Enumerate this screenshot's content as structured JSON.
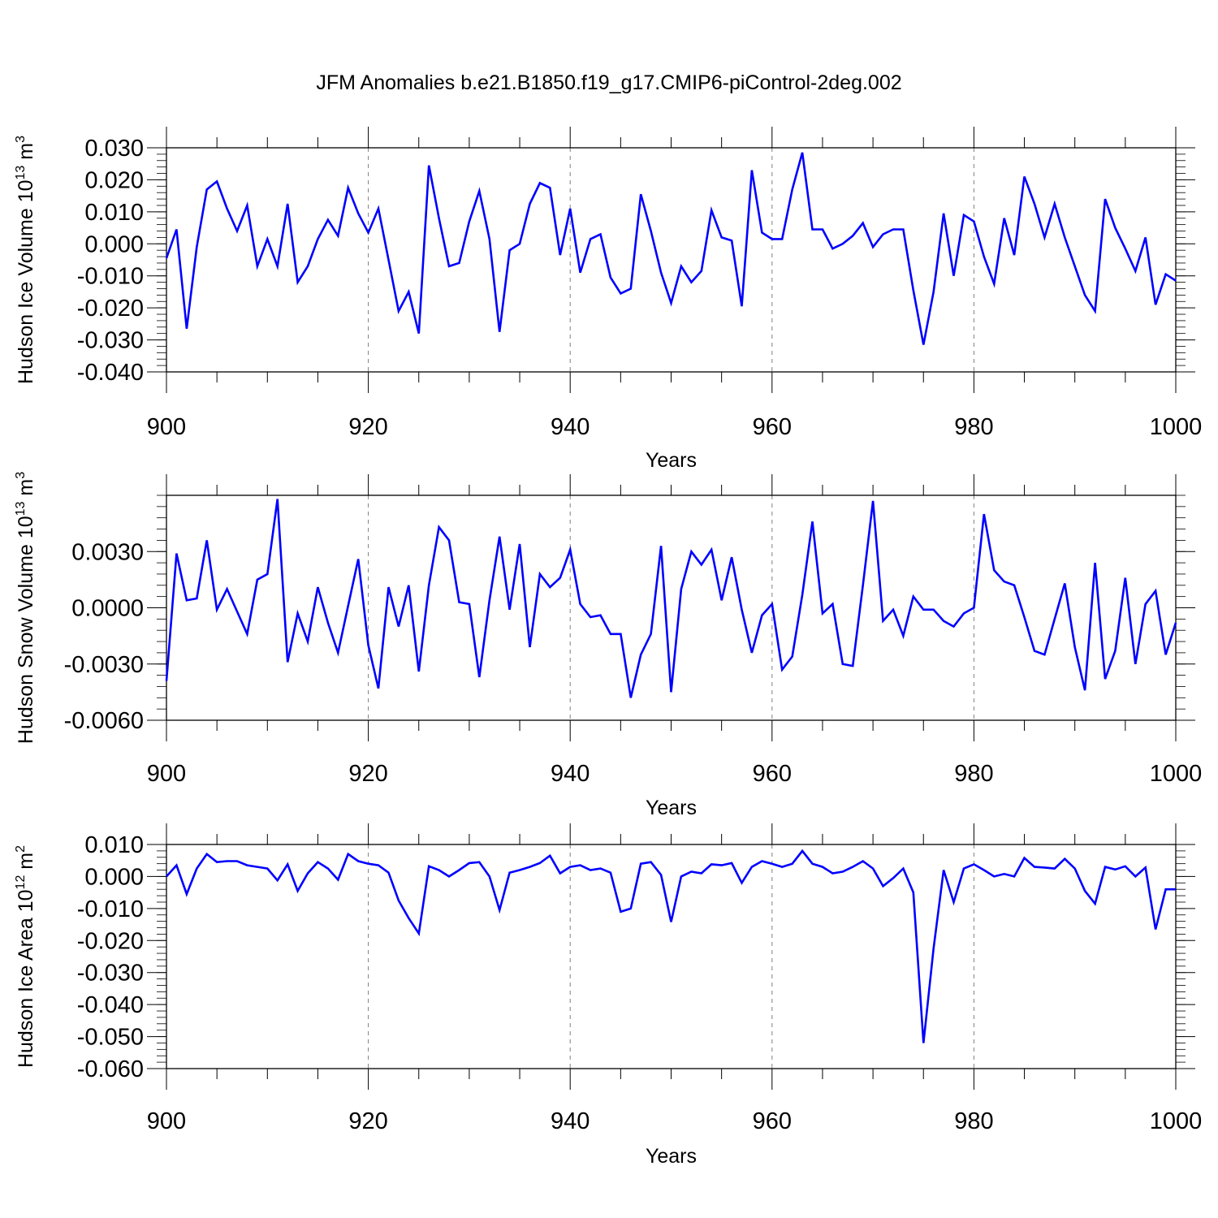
{
  "chart_data": [
    {
      "type": "line",
      "title": "JFM Anomalies b.e21.B1850.f19_g17.CMIP6-piControl-2deg.002",
      "xlabel": "Years",
      "ylabel": "Hudson Ice Volume 10",
      "ylabel_exp": "13",
      "ylabel_unit": " m",
      "ylabel_unit_exp": "3",
      "xlim": [
        900,
        1000
      ],
      "ylim": [
        -0.04,
        0.03
      ],
      "x_ticks": [
        900,
        920,
        940,
        960,
        980,
        1000
      ],
      "y_ticks": [
        "0.030",
        "0.020",
        "0.010",
        "0.000",
        "-0.010",
        "-0.020",
        "-0.030",
        "-0.040"
      ],
      "grid": "vertical-dashed",
      "line_color": "#0000ff",
      "x": [
        900,
        901,
        902,
        903,
        904,
        905,
        906,
        907,
        908,
        909,
        910,
        911,
        912,
        913,
        914,
        915,
        916,
        917,
        918,
        919,
        920,
        921,
        922,
        923,
        924,
        925,
        926,
        927,
        928,
        929,
        930,
        931,
        932,
        933,
        934,
        935,
        936,
        937,
        938,
        939,
        940,
        941,
        942,
        943,
        944,
        945,
        946,
        947,
        948,
        949,
        950,
        951,
        952,
        953,
        954,
        955,
        956,
        957,
        958,
        959,
        960,
        961,
        962,
        963,
        964,
        965,
        966,
        967,
        968,
        969,
        970,
        971,
        972,
        973,
        974,
        975,
        976,
        977,
        978,
        979,
        980,
        981,
        982,
        983,
        984,
        985,
        986,
        987,
        988,
        989,
        990,
        991,
        992,
        993,
        994,
        995,
        996,
        997,
        998,
        999,
        1000
      ],
      "values": [
        -0.0045,
        0.0045,
        -0.0265,
        -0.001,
        0.017,
        0.0195,
        0.011,
        0.004,
        0.012,
        -0.007,
        0.0015,
        -0.007,
        0.0125,
        -0.012,
        -0.007,
        0.0015,
        0.0075,
        0.0025,
        0.0175,
        0.0095,
        0.0035,
        0.011,
        -0.005,
        -0.021,
        -0.015,
        -0.028,
        0.0245,
        0.008,
        -0.007,
        -0.006,
        0.007,
        0.0165,
        0.0015,
        -0.0275,
        -0.002,
        0.0,
        0.0125,
        0.019,
        0.0175,
        -0.0035,
        0.011,
        -0.009,
        0.0015,
        0.003,
        -0.0105,
        -0.0155,
        -0.014,
        0.0155,
        0.004,
        -0.009,
        -0.0185,
        -0.007,
        -0.012,
        -0.0085,
        0.0105,
        0.002,
        0.001,
        -0.0195,
        0.023,
        0.0035,
        0.0015,
        0.0015,
        0.017,
        0.0285,
        0.0045,
        0.0045,
        -0.0015,
        0.0,
        0.0025,
        0.0065,
        -0.001,
        0.003,
        0.0045,
        0.0045,
        -0.0145,
        -0.0315,
        -0.015,
        0.0095,
        -0.01,
        0.009,
        0.007,
        -0.004,
        -0.0125,
        0.008,
        -0.0035,
        0.021,
        0.0125,
        0.002,
        0.0125,
        0.002,
        -0.007,
        -0.016,
        -0.021,
        0.014,
        0.005,
        -0.0015,
        -0.0085,
        0.002,
        -0.019,
        -0.0095,
        -0.0115
      ]
    },
    {
      "type": "line",
      "xlabel": "Years",
      "ylabel": "Hudson Snow Volume 10",
      "ylabel_exp": "13",
      "ylabel_unit": " m",
      "ylabel_unit_exp": "3",
      "xlim": [
        900,
        1000
      ],
      "ylim": [
        -0.006,
        0.006
      ],
      "x_ticks": [
        900,
        920,
        940,
        960,
        980,
        1000
      ],
      "y_ticks": [
        "0.0030",
        "0.0000",
        "-0.0030",
        "-0.0060"
      ],
      "y_tick_values": [
        0.003,
        0.0,
        -0.003,
        -0.006
      ],
      "grid": "vertical-dashed",
      "line_color": "#0000ff",
      "x": [
        900,
        901,
        902,
        903,
        904,
        905,
        906,
        907,
        908,
        909,
        910,
        911,
        912,
        913,
        914,
        915,
        916,
        917,
        918,
        919,
        920,
        921,
        922,
        923,
        924,
        925,
        926,
        927,
        928,
        929,
        930,
        931,
        932,
        933,
        934,
        935,
        936,
        937,
        938,
        939,
        940,
        941,
        942,
        943,
        944,
        945,
        946,
        947,
        948,
        949,
        950,
        951,
        952,
        953,
        954,
        955,
        956,
        957,
        958,
        959,
        960,
        961,
        962,
        963,
        964,
        965,
        966,
        967,
        968,
        969,
        970,
        971,
        972,
        973,
        974,
        975,
        976,
        977,
        978,
        979,
        980,
        981,
        982,
        983,
        984,
        985,
        986,
        987,
        988,
        989,
        990,
        991,
        992,
        993,
        994,
        995,
        996,
        997,
        998,
        999,
        1000
      ],
      "values": [
        -0.0039,
        0.0029,
        0.0004,
        0.0005,
        0.0036,
        -0.0001,
        0.001,
        -0.0002,
        -0.0014,
        0.0015,
        0.0018,
        0.0058,
        -0.0029,
        -0.0003,
        -0.0018,
        0.0011,
        -0.0008,
        -0.0024,
        0.0001,
        0.0026,
        -0.002,
        -0.0043,
        0.0011,
        -0.001,
        0.0012,
        -0.0034,
        0.0012,
        0.0043,
        0.0036,
        0.0003,
        0.0002,
        -0.0037,
        0.0004,
        0.0038,
        -0.0001,
        0.0034,
        -0.0021,
        0.0018,
        0.0011,
        0.0016,
        0.0031,
        0.0002,
        -0.0005,
        -0.0004,
        -0.0014,
        -0.0014,
        -0.0048,
        -0.0025,
        -0.0014,
        0.0033,
        -0.0045,
        0.001,
        0.003,
        0.0023,
        0.0031,
        0.0004,
        0.0027,
        -0.0001,
        -0.0024,
        -0.0004,
        0.0002,
        -0.0033,
        -0.0026,
        0.0007,
        0.0046,
        -0.0003,
        0.0002,
        -0.003,
        -0.0031,
        0.0012,
        0.0057,
        -0.0007,
        -0.0001,
        -0.0015,
        0.0006,
        -0.0001,
        -0.0001,
        -0.0007,
        -0.001,
        -0.0003,
        0.0,
        0.005,
        0.002,
        0.0014,
        0.0012,
        -0.0005,
        -0.0023,
        -0.0025,
        -0.0006,
        0.0013,
        -0.0021,
        -0.0044,
        0.0024,
        -0.0038,
        -0.0023,
        0.0016,
        -0.003,
        0.0002,
        0.0009,
        -0.0025,
        -0.0008
      ]
    },
    {
      "type": "line",
      "xlabel": "Years",
      "ylabel": "Hudson Ice Area 10",
      "ylabel_exp": "12",
      "ylabel_unit": " m",
      "ylabel_unit_exp": "2",
      "xlim": [
        900,
        1000
      ],
      "ylim": [
        -0.06,
        0.01
      ],
      "x_ticks": [
        900,
        920,
        940,
        960,
        980,
        1000
      ],
      "y_ticks": [
        "0.010",
        "0.000",
        "-0.010",
        "-0.020",
        "-0.030",
        "-0.040",
        "-0.050",
        "-0.060"
      ],
      "grid": "vertical-dashed",
      "line_color": "#0000ff",
      "x": [
        900,
        901,
        902,
        903,
        904,
        905,
        906,
        907,
        908,
        909,
        910,
        911,
        912,
        913,
        914,
        915,
        916,
        917,
        918,
        919,
        920,
        921,
        922,
        923,
        924,
        925,
        926,
        927,
        928,
        929,
        930,
        931,
        932,
        933,
        934,
        935,
        936,
        937,
        938,
        939,
        940,
        941,
        942,
        943,
        944,
        945,
        946,
        947,
        948,
        949,
        950,
        951,
        952,
        953,
        954,
        955,
        956,
        957,
        958,
        959,
        960,
        961,
        962,
        963,
        964,
        965,
        966,
        967,
        968,
        969,
        970,
        971,
        972,
        973,
        974,
        975,
        976,
        977,
        978,
        979,
        980,
        981,
        982,
        983,
        984,
        985,
        986,
        987,
        988,
        989,
        990,
        991,
        992,
        993,
        994,
        995,
        996,
        997,
        998,
        999,
        1000
      ],
      "values": [
        0.0,
        0.0035,
        -0.0055,
        0.0025,
        0.007,
        0.0045,
        0.0048,
        0.0048,
        0.0035,
        0.003,
        0.0025,
        -0.0012,
        0.0038,
        -0.0045,
        0.001,
        0.0045,
        0.0025,
        -0.001,
        0.007,
        0.0048,
        0.004,
        0.0035,
        0.0012,
        -0.0075,
        -0.013,
        -0.0178,
        0.0032,
        0.002,
        0.0,
        0.002,
        0.0042,
        0.0045,
        0.0,
        -0.0105,
        0.0012,
        0.002,
        0.003,
        0.0042,
        0.0065,
        0.001,
        0.003,
        0.0035,
        0.002,
        0.0025,
        0.0012,
        -0.011,
        -0.01,
        0.004,
        0.0045,
        0.0005,
        -0.0142,
        0.0,
        0.0015,
        0.001,
        0.0038,
        0.0035,
        0.0042,
        -0.002,
        0.003,
        0.0048,
        0.004,
        0.003,
        0.004,
        0.008,
        0.004,
        0.003,
        0.001,
        0.0015,
        0.003,
        0.0048,
        0.0025,
        -0.003,
        -0.0005,
        0.0025,
        -0.005,
        -0.052,
        -0.0225,
        0.002,
        -0.008,
        0.0025,
        0.0038,
        0.002,
        0.0,
        0.0008,
        0.0,
        0.0058,
        0.003,
        0.0028,
        0.0025,
        0.0055,
        0.0025,
        -0.0045,
        -0.0085,
        0.003,
        0.0022,
        0.0032,
        0.0,
        0.0028,
        -0.0165,
        -0.004,
        -0.004
      ]
    }
  ]
}
